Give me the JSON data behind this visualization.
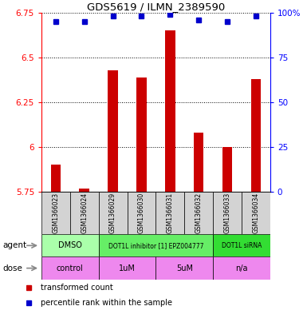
{
  "title": "GDS5619 / ILMN_2389590",
  "samples": [
    "GSM1366023",
    "GSM1366024",
    "GSM1366029",
    "GSM1366030",
    "GSM1366031",
    "GSM1366032",
    "GSM1366033",
    "GSM1366034"
  ],
  "bar_values": [
    5.9,
    5.77,
    6.43,
    6.39,
    6.65,
    6.08,
    6.0,
    6.38
  ],
  "percentile_values": [
    95,
    95,
    98,
    98,
    99,
    96,
    95,
    98
  ],
  "ylim_left": [
    5.75,
    6.75
  ],
  "ylim_right": [
    0,
    100
  ],
  "yticks_left": [
    5.75,
    6.0,
    6.25,
    6.5,
    6.75
  ],
  "ytick_labels_left": [
    "5.75",
    "6",
    "6.25",
    "6.5",
    "6.75"
  ],
  "yticks_right": [
    0,
    25,
    50,
    75,
    100
  ],
  "ytick_labels_right": [
    "0",
    "25",
    "50",
    "75",
    "100%"
  ],
  "bar_color": "#cc0000",
  "dot_color": "#0000cc",
  "bar_bottom": 5.75,
  "agent_groups": [
    {
      "label": "DMSO",
      "start": 0,
      "end": 2,
      "color": "#aaffaa"
    },
    {
      "label": "DOT1L inhibitor [1] EPZ004777",
      "start": 2,
      "end": 6,
      "color": "#66ee66"
    },
    {
      "label": "DOT1L siRNA",
      "start": 6,
      "end": 8,
      "color": "#33dd33"
    }
  ],
  "dose_groups": [
    {
      "label": "control",
      "start": 0,
      "end": 2,
      "color": "#ee88ee"
    },
    {
      "label": "1uM",
      "start": 2,
      "end": 4,
      "color": "#ee88ee"
    },
    {
      "label": "5uM",
      "start": 4,
      "end": 6,
      "color": "#ee88ee"
    },
    {
      "label": "n/a",
      "start": 6,
      "end": 8,
      "color": "#ee88ee"
    }
  ],
  "legend_items": [
    {
      "label": "transformed count",
      "color": "#cc0000"
    },
    {
      "label": "percentile rank within the sample",
      "color": "#0000cc"
    }
  ]
}
